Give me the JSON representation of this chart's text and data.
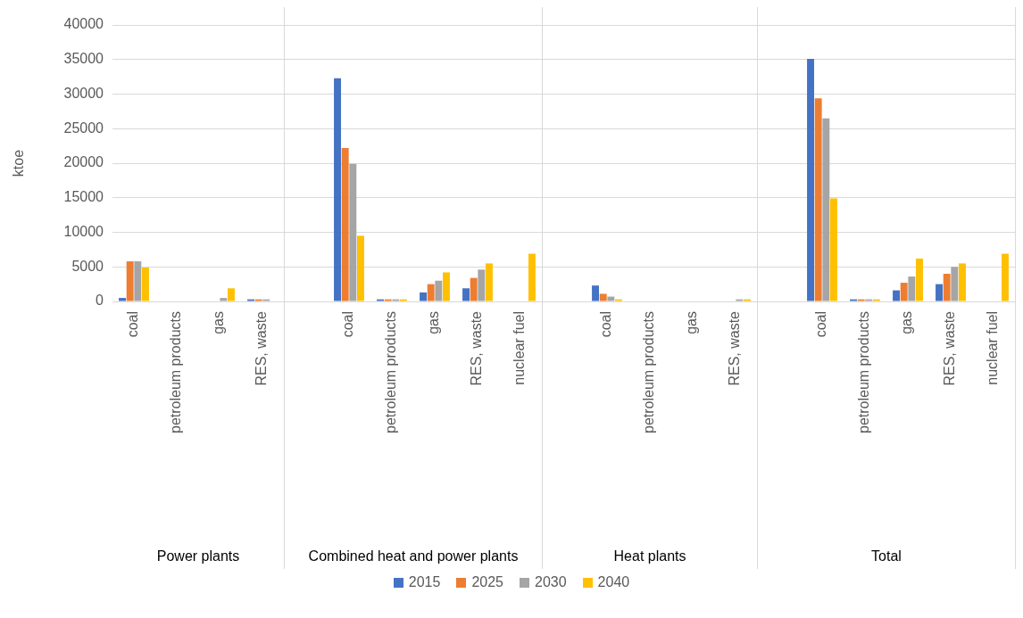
{
  "chart_data": [
    {
      "type": "bar",
      "xlabel": "Power plants",
      "ylabel": "ktoe",
      "categories": [
        "coal",
        "petroleum products",
        "gas",
        "RES, waste"
      ],
      "series": [
        {
          "name": "2015",
          "color": "#4472c4",
          "values": [
            500,
            0,
            0,
            300
          ]
        },
        {
          "name": "2025",
          "color": "#ed7d31",
          "values": [
            5800,
            0,
            0,
            300
          ]
        },
        {
          "name": "2030",
          "color": "#a5a5a5",
          "values": [
            5800,
            0,
            500,
            300
          ]
        },
        {
          "name": "2040",
          "color": "#ffc000",
          "values": [
            4900,
            0,
            1900,
            0
          ]
        }
      ],
      "ylim": [
        0,
        40000
      ],
      "yticks": [
        0,
        5000,
        10000,
        15000,
        20000,
        25000,
        30000,
        35000,
        40000
      ],
      "grid": "y",
      "legend": "bottom"
    },
    {
      "type": "bar",
      "xlabel": "Combined heat and power plants",
      "categories": [
        null,
        "coal",
        "petroleum products",
        "gas",
        "RES, waste",
        "nuclear fuel"
      ],
      "series": [
        {
          "name": "2015",
          "color": "#4472c4",
          "values": [
            0,
            32300,
            300,
            1300,
            1900,
            0
          ]
        },
        {
          "name": "2025",
          "color": "#ed7d31",
          "values": [
            0,
            22200,
            300,
            2500,
            3400,
            0
          ]
        },
        {
          "name": "2030",
          "color": "#a5a5a5",
          "values": [
            0,
            19900,
            300,
            3000,
            4600,
            0
          ]
        },
        {
          "name": "2040",
          "color": "#ffc000",
          "values": [
            0,
            9500,
            300,
            4200,
            5500,
            6900
          ]
        }
      ],
      "ylim": [
        0,
        40000
      ],
      "yticks": [
        0,
        5000,
        10000,
        15000,
        20000,
        25000,
        30000,
        35000,
        40000
      ],
      "grid": "y",
      "legend": "bottom",
      "tick_labels": "x"
    },
    {
      "type": "bar",
      "xlabel": "Heat plants",
      "categories": [
        null,
        "coal",
        "petroleum products",
        "gas",
        "RES, waste"
      ],
      "series": [
        {
          "name": "2015",
          "color": "#4472c4",
          "values": [
            0,
            2300,
            0,
            0,
            0
          ]
        },
        {
          "name": "2025",
          "color": "#ed7d31",
          "values": [
            0,
            1100,
            0,
            0,
            0
          ]
        },
        {
          "name": "2030",
          "color": "#a5a5a5",
          "values": [
            0,
            700,
            0,
            0,
            300
          ]
        },
        {
          "name": "2040",
          "color": "#ffc000",
          "values": [
            0,
            300,
            0,
            0,
            300
          ]
        }
      ],
      "ylim": [
        0,
        40000
      ],
      "yticks": [
        0,
        5000,
        10000,
        15000,
        20000,
        25000,
        30000,
        35000,
        40000
      ],
      "grid": "y",
      "legend": "bottom",
      "tick_labels": "x"
    },
    {
      "type": "bar",
      "xlabel": "Total",
      "categories": [
        null,
        "coal",
        "petroleum products",
        "gas",
        "RES, waste",
        "nuclear fuel"
      ],
      "series": [
        {
          "name": "2015",
          "color": "#4472c4",
          "values": [
            0,
            35100,
            300,
            1600,
            2500,
            0
          ]
        },
        {
          "name": "2025",
          "color": "#ed7d31",
          "values": [
            0,
            29400,
            300,
            2700,
            4000,
            0
          ]
        },
        {
          "name": "2030",
          "color": "#a5a5a5",
          "values": [
            0,
            26500,
            300,
            3600,
            5000,
            0
          ]
        },
        {
          "name": "2040",
          "color": "#ffc000",
          "values": [
            0,
            14900,
            300,
            6200,
            5500,
            6900
          ]
        }
      ],
      "ylim": [
        0,
        40000
      ],
      "yticks": [
        0,
        5000,
        10000,
        15000,
        20000,
        25000,
        30000,
        35000,
        40000
      ],
      "grid": "y",
      "legend": "bottom",
      "tick_labels": "x"
    }
  ]
}
